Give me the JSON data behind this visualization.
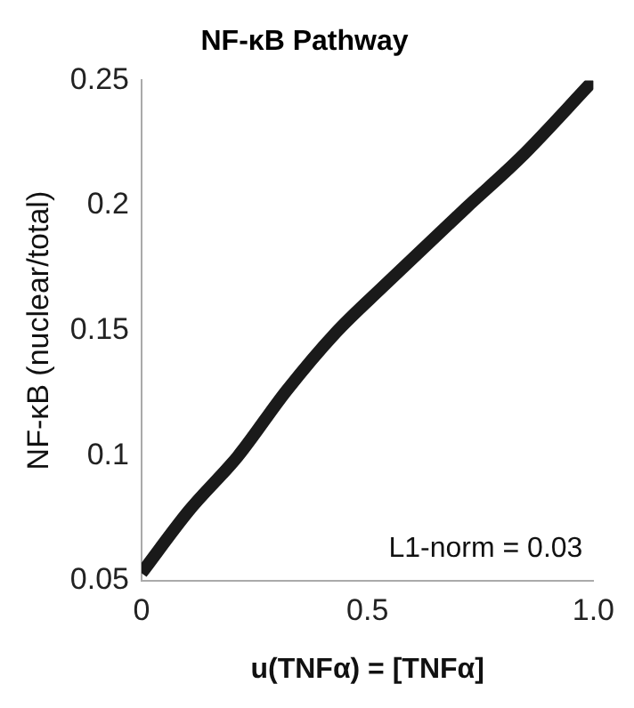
{
  "chart_data": {
    "type": "line",
    "title": "NF-κB Pathway",
    "xlabel": "u(TNFα) = [TNFα]",
    "ylabel": "NF-κB (nuclear/total)",
    "annotations": [
      "L1-norm = 0.03"
    ],
    "x": [
      0,
      0.105,
      0.213,
      0.321,
      0.429,
      0.537,
      0.718,
      0.838,
      1
    ],
    "series": [
      {
        "color": "#1a1a1a",
        "values": [
          0.053,
          0.078,
          0.0997,
          0.126,
          0.149,
          0.168,
          0.199,
          0.219,
          0.25
        ]
      }
    ],
    "xlim": [
      0,
      1
    ],
    "xticks": [
      0,
      0.5,
      {
        "value": 1,
        "label": "1.0"
      }
    ],
    "ylim": [
      0.05,
      0.25
    ],
    "yticks": [
      0.05,
      0.1,
      0.15,
      0.2,
      0.25
    ],
    "grid": false,
    "legend": false,
    "marker": "none",
    "line_style": "solid"
  }
}
